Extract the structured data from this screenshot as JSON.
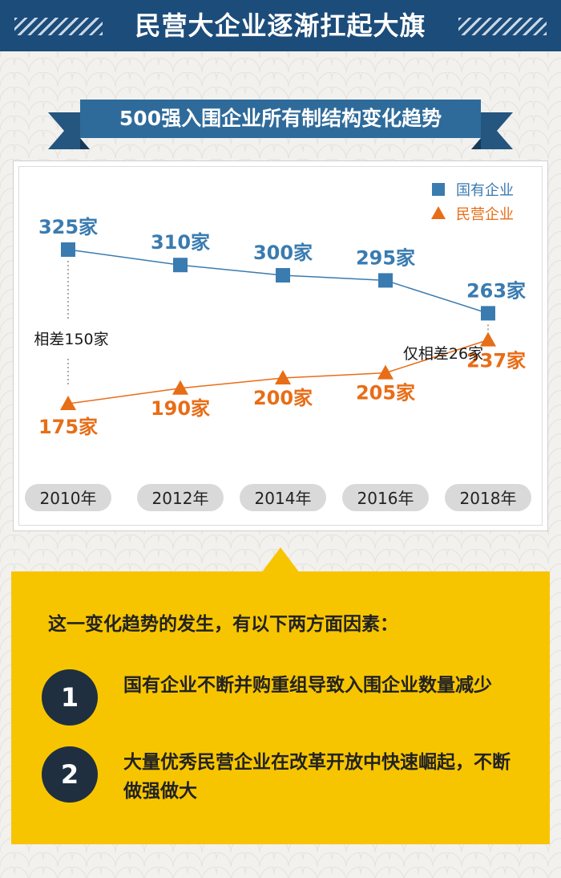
{
  "header": {
    "title": "民营大企业逐渐扛起大旗"
  },
  "subtitle": "500强入围企业所有制结构变化趋势",
  "chart_data": {
    "type": "line",
    "categories": [
      "2010年",
      "2012年",
      "2014年",
      "2016年",
      "2018年"
    ],
    "series": [
      {
        "name": "国有企业",
        "values": [
          325,
          310,
          300,
          295,
          263
        ],
        "unit": "家",
        "color": "#3a7bb0",
        "marker": "square"
      },
      {
        "name": "民营企业",
        "values": [
          175,
          190,
          200,
          205,
          237
        ],
        "unit": "家",
        "color": "#e86d17",
        "marker": "triangle"
      }
    ],
    "legend_position": "top-right",
    "annotations": [
      {
        "text": "相差150家",
        "category": "2010年"
      },
      {
        "text": "仅相差26家",
        "category": "2018年"
      }
    ],
    "ylim": [
      150,
      350
    ],
    "grid": false
  },
  "reasons": {
    "intro": "这一变化趋势的发生，有以下两方面因素：",
    "items": [
      {
        "number": "1",
        "text": "国有企业不断并购重组导致入围企业数量减少"
      },
      {
        "number": "2",
        "text": "大量优秀民营企业在改革开放中快速崛起，不断做强做大"
      }
    ]
  },
  "colors": {
    "header": "#1c4c7a",
    "ribbon": "#2f6b9a",
    "panel": "#f7c500",
    "state": "#3a7bb0",
    "private": "#e86d17"
  }
}
